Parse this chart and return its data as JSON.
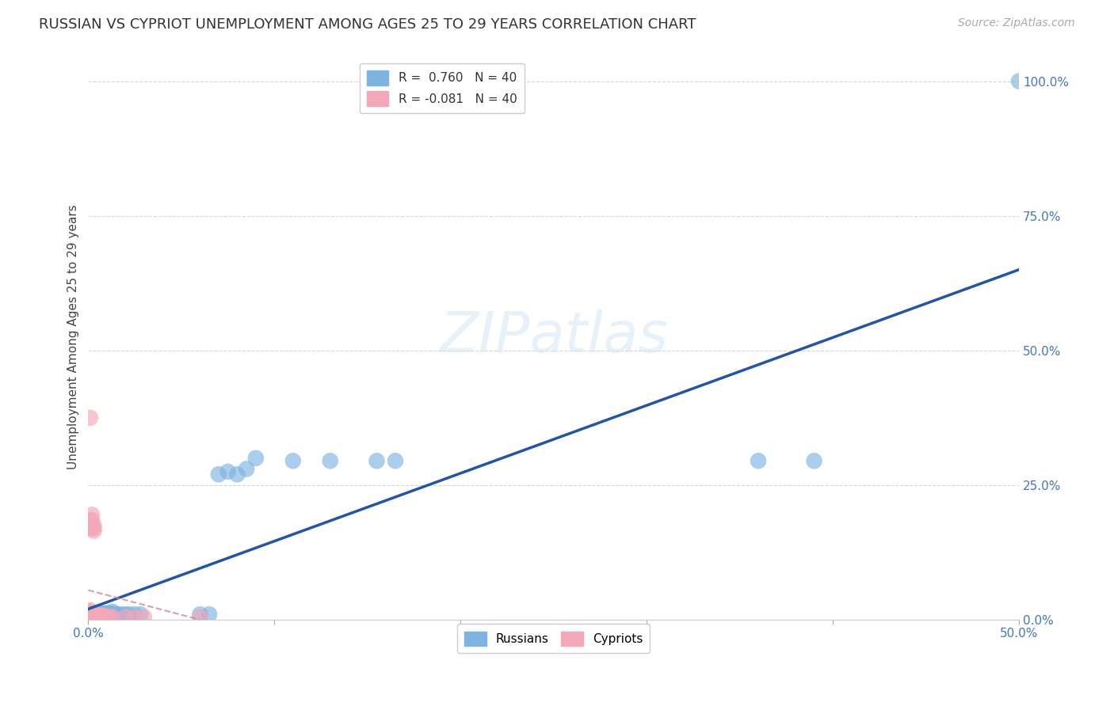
{
  "title": "RUSSIAN VS CYPRIOT UNEMPLOYMENT AMONG AGES 25 TO 29 YEARS CORRELATION CHART",
  "source": "Source: ZipAtlas.com",
  "ylabel": "Unemployment Among Ages 25 to 29 years",
  "xlim": [
    0.0,
    0.5
  ],
  "ylim": [
    0.0,
    1.05
  ],
  "xticks": [
    0.0,
    0.1,
    0.2,
    0.3,
    0.4,
    0.5
  ],
  "xtick_labels_show": [
    "0.0%",
    "",
    "",
    "",
    "",
    "50.0%"
  ],
  "yticks": [
    0.0,
    0.25,
    0.5,
    0.75,
    1.0
  ],
  "ytick_labels": [
    "0.0%",
    "25.0%",
    "50.0%",
    "75.0%",
    "100.0%"
  ],
  "russian_color": "#7EB4E2",
  "cypriot_color": "#F4A7B9",
  "trend_russian_color": "#2255AA",
  "trend_cypriot_color": "#D08898",
  "background_color": "#ffffff",
  "grid_color": "#cccccc",
  "tick_color": "#4477BB",
  "russians_x": [
    0.001,
    0.001,
    0.002,
    0.002,
    0.003,
    0.003,
    0.004,
    0.004,
    0.005,
    0.005,
    0.006,
    0.007,
    0.008,
    0.009,
    0.01,
    0.011,
    0.012,
    0.013,
    0.014,
    0.015,
    0.016,
    0.018,
    0.02,
    0.022,
    0.025,
    0.028,
    0.06,
    0.065,
    0.07,
    0.075,
    0.08,
    0.085,
    0.09,
    0.11,
    0.13,
    0.155,
    0.165,
    0.36,
    0.39,
    0.5
  ],
  "russians_y": [
    0.008,
    0.01,
    0.01,
    0.012,
    0.01,
    0.012,
    0.01,
    0.012,
    0.01,
    0.012,
    0.01,
    0.01,
    0.012,
    0.01,
    0.012,
    0.012,
    0.012,
    0.015,
    0.01,
    0.01,
    0.01,
    0.01,
    0.01,
    0.01,
    0.01,
    0.01,
    0.01,
    0.01,
    0.27,
    0.275,
    0.27,
    0.28,
    0.3,
    0.295,
    0.295,
    0.295,
    0.295,
    0.295,
    0.295,
    1.0
  ],
  "cypriots_x": [
    0.001,
    0.001,
    0.001,
    0.001,
    0.001,
    0.001,
    0.001,
    0.001,
    0.001,
    0.002,
    0.002,
    0.002,
    0.002,
    0.002,
    0.002,
    0.003,
    0.003,
    0.003,
    0.003,
    0.003,
    0.003,
    0.004,
    0.004,
    0.005,
    0.005,
    0.006,
    0.006,
    0.007,
    0.007,
    0.008,
    0.008,
    0.009,
    0.01,
    0.011,
    0.012,
    0.013,
    0.02,
    0.025,
    0.03,
    0.06
  ],
  "cypriots_y": [
    0.005,
    0.008,
    0.01,
    0.012,
    0.015,
    0.018,
    0.17,
    0.185,
    0.375,
    0.005,
    0.008,
    0.01,
    0.17,
    0.185,
    0.195,
    0.005,
    0.008,
    0.01,
    0.165,
    0.17,
    0.175,
    0.005,
    0.01,
    0.005,
    0.008,
    0.005,
    0.008,
    0.005,
    0.008,
    0.005,
    0.008,
    0.005,
    0.005,
    0.005,
    0.005,
    0.005,
    0.005,
    0.005,
    0.005,
    0.005
  ],
  "legend_upper": [
    {
      "color": "#7EB4E2",
      "r_label": "R = ",
      "r_value": " 0.760",
      "n_label": "  N = 40"
    },
    {
      "color": "#F4A7B9",
      "r_label": "R = ",
      "r_value": "-0.081",
      "n_label": "  N = 40"
    }
  ],
  "bottom_legend": [
    "Russians",
    "Cypriots"
  ],
  "title_fontsize": 13,
  "axis_label_fontsize": 11,
  "tick_fontsize": 11,
  "source_fontsize": 10,
  "legend_fontsize": 11
}
